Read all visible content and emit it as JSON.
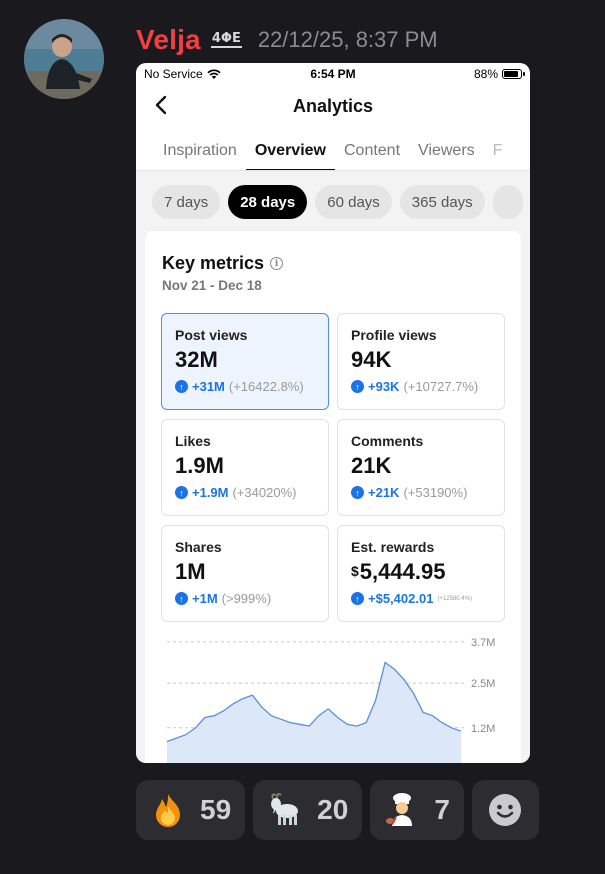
{
  "message": {
    "username": "Velja",
    "clan_tag": "4ΦΕ",
    "timestamp": "22/12/25, 8:37 PM"
  },
  "phone": {
    "status": {
      "carrier": "No Service",
      "time": "6:54 PM",
      "battery": "88%",
      "battery_level": 0.88
    },
    "nav": {
      "title": "Analytics"
    },
    "tabs": [
      "Inspiration",
      "Overview",
      "Content",
      "Viewers",
      "F"
    ],
    "active_tab": "Overview",
    "ranges": [
      "7 days",
      "28 days",
      "60 days",
      "365 days"
    ],
    "active_range": "28 days",
    "key_metrics": {
      "title": "Key metrics",
      "range": "Nov 21 - Dec 18",
      "items": [
        {
          "label": "Post views",
          "value": "32M",
          "delta": "+31M",
          "pct": "(+16422.8%)"
        },
        {
          "label": "Profile views",
          "value": "94K",
          "delta": "+93K",
          "pct": "(+10727.7%)"
        },
        {
          "label": "Likes",
          "value": "1.9M",
          "delta": "+1.9M",
          "pct": "(+34020%)"
        },
        {
          "label": "Comments",
          "value": "21K",
          "delta": "+21K",
          "pct": "(+53190%)"
        },
        {
          "label": "Shares",
          "value": "1M",
          "delta": "+1M",
          "pct": "(>999%)"
        },
        {
          "label": "Est. rewards",
          "currency": "$",
          "value": "5,444.95",
          "delta": "+$5,402.01",
          "pct": "(+12580.4%)"
        }
      ]
    },
    "chart_data": {
      "type": "area",
      "y_ticks": [
        "3.7M",
        "2.5M",
        "1.2M"
      ],
      "y_tick_values": [
        3.7,
        2.5,
        1.2
      ],
      "ylim": [
        0,
        3.9
      ],
      "values": [
        0.8,
        0.9,
        1.0,
        1.2,
        1.5,
        1.55,
        1.7,
        1.9,
        2.05,
        2.15,
        1.8,
        1.55,
        1.45,
        1.35,
        1.3,
        1.25,
        1.55,
        1.75,
        1.5,
        1.3,
        1.25,
        1.35,
        2.0,
        3.1,
        2.9,
        2.6,
        2.2,
        1.65,
        1.55,
        1.35,
        1.2,
        1.1
      ],
      "accent": "#5b8fd6"
    }
  },
  "reactions": [
    {
      "emoji": "fire-emoji",
      "count": "59"
    },
    {
      "emoji": "goat-emoji",
      "count": "20"
    },
    {
      "emoji": "cook-emoji",
      "count": "7"
    }
  ]
}
